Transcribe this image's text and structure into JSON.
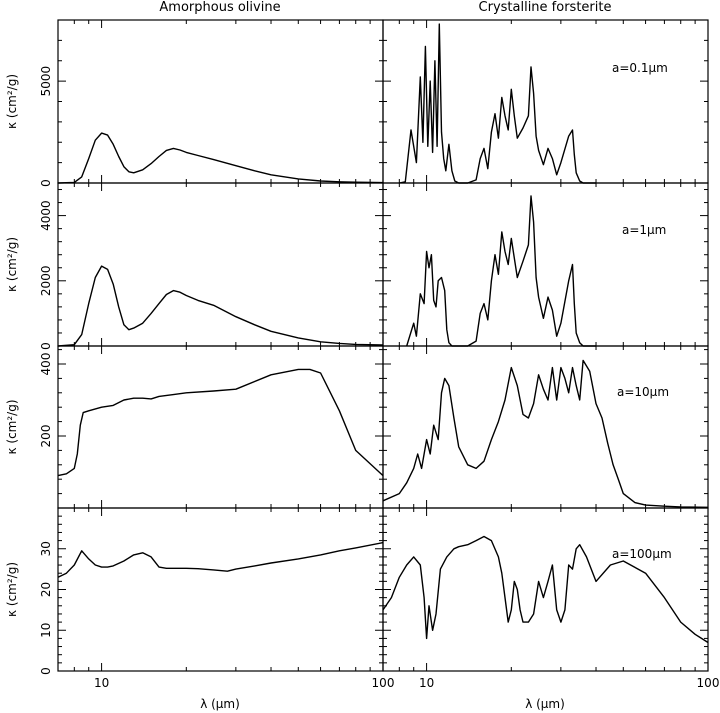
{
  "columns": [
    "Amorphous olivine",
    "Crystalline forsterite"
  ],
  "ylabel": "κ (cm²/g)",
  "xlabel": "λ (μm)",
  "grain_sizes": [
    "a=0.1μm",
    "a=1μm",
    "a=10μm",
    "a=100μm"
  ],
  "chart_data": [
    {
      "type": "line",
      "title": "Amorphous olivine",
      "panel": "row1-left",
      "xlabel": "",
      "ylabel": "κ (cm²/g)",
      "xscale": "log",
      "xlim": [
        7,
        100
      ],
      "ylim": [
        0,
        8000
      ],
      "xticks_labeled": [
        10,
        100
      ],
      "yticks_labeled": [
        0,
        5000
      ],
      "x": [
        7,
        8,
        8.5,
        9,
        9.5,
        10,
        10.5,
        11,
        11.5,
        12,
        12.5,
        13,
        14,
        15,
        16,
        17,
        18,
        19,
        20,
        22,
        25,
        30,
        35,
        40,
        50,
        60,
        70,
        80,
        100
      ],
      "y": [
        0,
        30,
        300,
        1200,
        2100,
        2450,
        2350,
        1900,
        1300,
        800,
        550,
        500,
        650,
        950,
        1300,
        1600,
        1700,
        1620,
        1500,
        1350,
        1150,
        850,
        600,
        400,
        200,
        100,
        60,
        40,
        20
      ]
    },
    {
      "type": "line",
      "title": "Crystalline forsterite",
      "panel": "row1-right",
      "annotation": "a=0.1μm",
      "xlabel": "",
      "ylabel": "",
      "xscale": "log",
      "xlim": [
        7,
        100
      ],
      "ylim": [
        0,
        8000
      ],
      "xticks_labeled": [
        10,
        100
      ],
      "yticks_labeled": [],
      "x": [
        8.0,
        8.4,
        8.8,
        9.2,
        9.5,
        9.7,
        9.9,
        10.1,
        10.3,
        10.5,
        10.7,
        10.9,
        11.1,
        11.3,
        11.5,
        11.7,
        12.0,
        12.3,
        12.6,
        13,
        14,
        15,
        15.5,
        16,
        16.5,
        17,
        17.5,
        18,
        18.5,
        19,
        19.5,
        20,
        20.5,
        21,
        22,
        23,
        23.5,
        24,
        24.5,
        25,
        26,
        27,
        28,
        29,
        30,
        32,
        33,
        33.5,
        34,
        35,
        36,
        38,
        40
      ],
      "y": [
        0,
        60,
        2600,
        1000,
        5200,
        2000,
        6700,
        1800,
        5000,
        1500,
        6000,
        1800,
        7800,
        2500,
        1200,
        600,
        1900,
        600,
        100,
        0,
        0,
        150,
        1200,
        1700,
        700,
        2500,
        3400,
        2200,
        4200,
        3300,
        2600,
        4600,
        3300,
        2200,
        2700,
        3300,
        5700,
        4400,
        2300,
        1600,
        900,
        1700,
        1200,
        400,
        1000,
        2300,
        2600,
        1400,
        500,
        100,
        0,
        0,
        0
      ]
    },
    {
      "type": "line",
      "panel": "row2-left",
      "xlabel": "",
      "ylabel": "κ (cm²/g)",
      "xscale": "log",
      "xlim": [
        7,
        100
      ],
      "ylim": [
        0,
        5000
      ],
      "xticks_labeled": [
        10,
        100
      ],
      "yticks_labeled": [
        0,
        2000,
        4000
      ],
      "x": [
        7,
        8,
        8.5,
        9,
        9.5,
        10,
        10.5,
        11,
        11.5,
        12,
        12.5,
        13,
        14,
        15,
        16,
        17,
        18,
        19,
        20,
        22,
        25,
        30,
        35,
        40,
        50,
        60,
        70,
        80,
        100
      ],
      "y": [
        0,
        40,
        350,
        1300,
        2100,
        2450,
        2350,
        1900,
        1200,
        650,
        500,
        550,
        700,
        1000,
        1300,
        1580,
        1700,
        1650,
        1550,
        1400,
        1250,
        900,
        650,
        450,
        250,
        130,
        80,
        50,
        30
      ]
    },
    {
      "type": "line",
      "panel": "row2-right",
      "annotation": "a=1μm",
      "xlabel": "",
      "ylabel": "",
      "xscale": "log",
      "xlim": [
        7,
        100
      ],
      "ylim": [
        0,
        5000
      ],
      "xticks_labeled": [
        10,
        100
      ],
      "yticks_labeled": [],
      "x": [
        8.5,
        9.0,
        9.2,
        9.5,
        9.8,
        10.0,
        10.2,
        10.4,
        10.6,
        10.8,
        11.0,
        11.3,
        11.6,
        11.8,
        12.0,
        12.3,
        12.6,
        13,
        14,
        15,
        15.5,
        16,
        16.5,
        17,
        17.5,
        18,
        18.5,
        19,
        19.5,
        20,
        20.5,
        21,
        22,
        23,
        23.5,
        24,
        24.5,
        25,
        26,
        27,
        28,
        29,
        30,
        32,
        33,
        33.5,
        34,
        35,
        36,
        40
      ],
      "y": [
        0,
        700,
        300,
        1600,
        1300,
        2900,
        2400,
        2800,
        1400,
        1200,
        2000,
        2100,
        1700,
        500,
        100,
        0,
        0,
        0,
        0,
        150,
        1000,
        1300,
        800,
        2000,
        2800,
        2200,
        3500,
        2900,
        2500,
        3300,
        2700,
        2100,
        2600,
        3100,
        4600,
        3800,
        2100,
        1500,
        850,
        1500,
        1100,
        300,
        700,
        2000,
        2500,
        1300,
        400,
        100,
        0,
        0
      ]
    },
    {
      "type": "line",
      "panel": "row3-left",
      "xlabel": "",
      "ylabel": "κ (cm²/g)",
      "xscale": "log",
      "xlim": [
        7,
        100
      ],
      "ylim": [
        0,
        450
      ],
      "xticks_labeled": [
        10,
        100
      ],
      "yticks_labeled": [
        200,
        400
      ],
      "x": [
        7,
        7.5,
        8,
        8.2,
        8.4,
        8.6,
        9,
        10,
        11,
        12,
        13,
        14,
        15,
        16,
        18,
        20,
        25,
        30,
        40,
        50,
        55,
        60,
        70,
        80,
        100
      ],
      "y": [
        90,
        95,
        110,
        150,
        230,
        265,
        270,
        280,
        285,
        300,
        305,
        305,
        303,
        310,
        315,
        320,
        325,
        330,
        370,
        385,
        385,
        375,
        270,
        160,
        90
      ]
    },
    {
      "type": "line",
      "panel": "row3-right",
      "annotation": "a=10μm",
      "xlabel": "",
      "ylabel": "",
      "xscale": "log",
      "xlim": [
        7,
        100
      ],
      "ylim": [
        0,
        450
      ],
      "xticks_labeled": [
        10,
        100
      ],
      "yticks_labeled": [],
      "x": [
        7,
        8,
        8.5,
        9,
        9.3,
        9.6,
        10,
        10.3,
        10.6,
        11,
        11.3,
        11.6,
        12,
        12.5,
        13,
        14,
        15,
        16,
        17,
        18,
        19,
        20,
        21,
        22,
        23,
        24,
        25,
        26,
        27,
        28,
        29,
        30,
        31,
        32,
        33,
        34,
        35,
        36,
        38,
        40,
        42,
        44,
        45,
        46,
        48,
        50,
        55,
        60,
        70,
        80,
        100
      ],
      "y": [
        20,
        40,
        70,
        110,
        150,
        110,
        190,
        150,
        230,
        190,
        320,
        360,
        340,
        250,
        170,
        120,
        110,
        130,
        190,
        240,
        300,
        390,
        340,
        260,
        250,
        290,
        370,
        330,
        300,
        390,
        300,
        390,
        360,
        320,
        390,
        340,
        300,
        410,
        380,
        290,
        250,
        180,
        150,
        120,
        80,
        40,
        15,
        8,
        5,
        3,
        2
      ]
    },
    {
      "type": "line",
      "panel": "row4-left",
      "xlabel": "λ (μm)",
      "ylabel": "κ (cm²/g)",
      "xscale": "log",
      "xlim": [
        7,
        100
      ],
      "ylim": [
        0,
        40
      ],
      "xticks_labeled": [
        10,
        100
      ],
      "yticks_labeled": [
        0,
        10,
        20,
        30
      ],
      "x": [
        7,
        7.5,
        8,
        8.5,
        9,
        9.5,
        10,
        10.5,
        11,
        12,
        13,
        14,
        15,
        16,
        17,
        18,
        20,
        22,
        25,
        28,
        30,
        35,
        40,
        50,
        60,
        70,
        80,
        100
      ],
      "y": [
        23,
        24,
        26,
        29.5,
        27.5,
        26,
        25.5,
        25.5,
        25.8,
        27,
        28.5,
        29,
        28,
        25.5,
        25.2,
        25.2,
        25.2,
        25.1,
        24.8,
        24.5,
        25,
        25.8,
        26.5,
        27.5,
        28.5,
        29.5,
        30.2,
        31.5
      ]
    },
    {
      "type": "line",
      "panel": "row4-right",
      "annotation": "a=100μm",
      "xlabel": "λ (μm)",
      "ylabel": "",
      "xscale": "log",
      "xlim": [
        7,
        100
      ],
      "ylim": [
        0,
        40
      ],
      "xticks_labeled": [
        10,
        100
      ],
      "yticks_labeled": [],
      "x": [
        7,
        7.5,
        8,
        8.5,
        9,
        9.5,
        9.8,
        10,
        10.2,
        10.5,
        10.8,
        11.2,
        11.8,
        12.5,
        13,
        14,
        15,
        16,
        17,
        18,
        18.5,
        19,
        19.5,
        20,
        20.5,
        21,
        21.5,
        22,
        23,
        24,
        25,
        26,
        27,
        28,
        29,
        30,
        31,
        32,
        33,
        34,
        35,
        37,
        40,
        45,
        50,
        60,
        70,
        80,
        90,
        100
      ],
      "y": [
        15,
        18,
        23,
        26,
        28,
        26,
        18,
        8,
        16,
        10,
        14,
        25,
        28,
        30,
        30.5,
        31,
        32,
        33,
        32,
        28,
        24,
        18,
        12,
        15,
        22,
        20,
        15,
        12,
        12,
        14,
        22,
        18,
        22,
        26,
        15,
        12,
        15,
        26,
        25,
        30,
        31,
        28,
        22,
        26,
        27,
        24,
        18,
        12,
        9,
        7
      ]
    }
  ]
}
